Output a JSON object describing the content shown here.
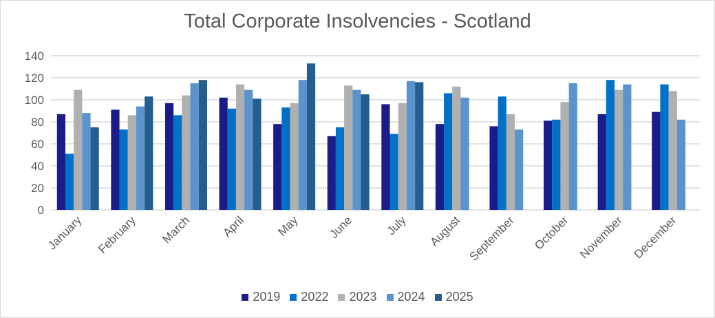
{
  "chart_data": {
    "type": "bar",
    "title": "Total Corporate Insolvencies - Scotland",
    "xlabel": "",
    "ylabel": "",
    "ylim": [
      0,
      140
    ],
    "yticks": [
      0,
      20,
      40,
      60,
      80,
      100,
      120,
      140
    ],
    "grid": true,
    "legend_position": "bottom",
    "categories": [
      "January",
      "February",
      "March",
      "April",
      "May",
      "June",
      "July",
      "August",
      "September",
      "October",
      "November",
      "December"
    ],
    "series": [
      {
        "name": "2019",
        "color": "#1b1b8a",
        "values": [
          87,
          91,
          97,
          102,
          78,
          67,
          96,
          78,
          76,
          81,
          87,
          89
        ]
      },
      {
        "name": "2022",
        "color": "#0070c9",
        "values": [
          51,
          73,
          86,
          92,
          93,
          75,
          69,
          106,
          103,
          82,
          118,
          114
        ]
      },
      {
        "name": "2023",
        "color": "#b0b0b0",
        "values": [
          109,
          86,
          104,
          114,
          97,
          113,
          97,
          112,
          87,
          98,
          109,
          108
        ]
      },
      {
        "name": "2024",
        "color": "#5b93cc",
        "values": [
          88,
          94,
          115,
          109,
          118,
          109,
          117,
          102,
          73,
          115,
          114,
          82
        ]
      },
      {
        "name": "2025",
        "color": "#245e8f",
        "values": [
          75,
          103,
          118,
          101,
          133,
          105,
          116,
          null,
          null,
          null,
          null,
          null
        ]
      }
    ]
  }
}
